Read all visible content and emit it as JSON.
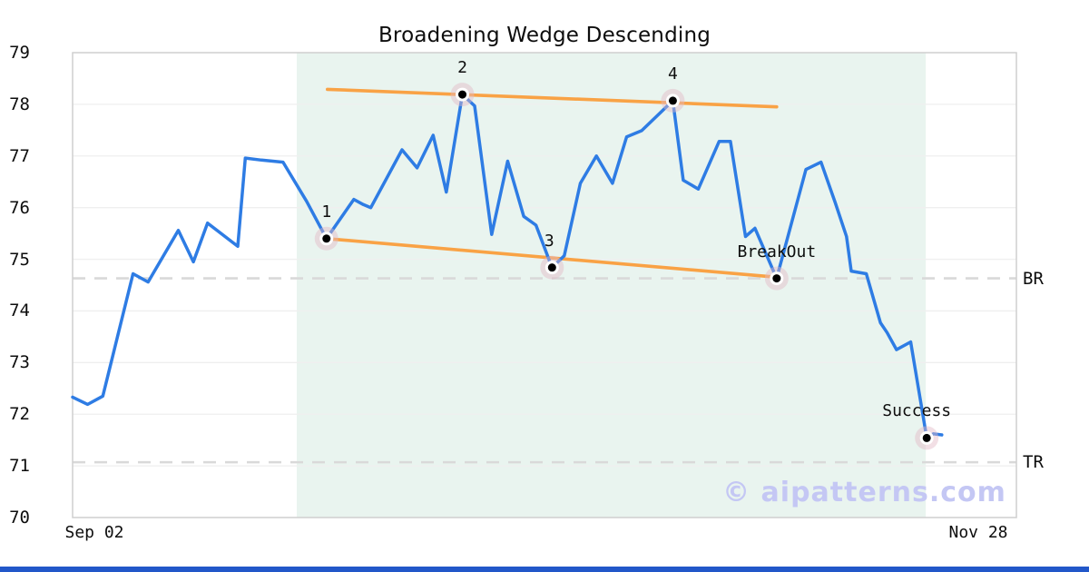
{
  "chart_data": {
    "type": "line",
    "title": "Broadening Wedge Descending",
    "watermark": "© aipatterns.com",
    "y_axis": {
      "min": 70,
      "max": 79,
      "ticks": [
        70,
        71,
        72,
        73,
        74,
        75,
        76,
        77,
        78,
        79
      ]
    },
    "x_axis": {
      "tick_labels": [
        "Sep 02",
        "Nov 28"
      ]
    },
    "series": {
      "name": "price",
      "points": [
        [
          0.0,
          72.33
        ],
        [
          0.016,
          72.19
        ],
        [
          0.032,
          72.35
        ],
        [
          0.064,
          74.72
        ],
        [
          0.08,
          74.56
        ],
        [
          0.112,
          75.56
        ],
        [
          0.128,
          74.95
        ],
        [
          0.143,
          75.7
        ],
        [
          0.175,
          75.25
        ],
        [
          0.183,
          76.96
        ],
        [
          0.2,
          76.92
        ],
        [
          0.223,
          76.88
        ],
        [
          0.248,
          76.12
        ],
        [
          0.269,
          75.4
        ],
        [
          0.298,
          76.16
        ],
        [
          0.308,
          76.06
        ],
        [
          0.316,
          76.0
        ],
        [
          0.349,
          77.12
        ],
        [
          0.365,
          76.77
        ],
        [
          0.382,
          77.4
        ],
        [
          0.396,
          76.3
        ],
        [
          0.413,
          78.19
        ],
        [
          0.426,
          77.97
        ],
        [
          0.444,
          75.48
        ],
        [
          0.461,
          76.9
        ],
        [
          0.478,
          75.83
        ],
        [
          0.491,
          75.66
        ],
        [
          0.508,
          74.84
        ],
        [
          0.521,
          75.07
        ],
        [
          0.538,
          76.47
        ],
        [
          0.555,
          77.0
        ],
        [
          0.572,
          76.47
        ],
        [
          0.587,
          77.37
        ],
        [
          0.603,
          77.49
        ],
        [
          0.636,
          78.07
        ],
        [
          0.647,
          76.53
        ],
        [
          0.663,
          76.36
        ],
        [
          0.685,
          77.28
        ],
        [
          0.697,
          77.28
        ],
        [
          0.713,
          75.44
        ],
        [
          0.723,
          75.6
        ],
        [
          0.746,
          74.63
        ],
        [
          0.777,
          76.74
        ],
        [
          0.793,
          76.88
        ],
        [
          0.808,
          76.1
        ],
        [
          0.82,
          75.44
        ],
        [
          0.825,
          74.77
        ],
        [
          0.841,
          74.72
        ],
        [
          0.856,
          73.77
        ],
        [
          0.863,
          73.58
        ],
        [
          0.873,
          73.25
        ],
        [
          0.888,
          73.4
        ],
        [
          0.905,
          71.54
        ],
        [
          0.912,
          71.62
        ],
        [
          0.921,
          71.6
        ]
      ]
    },
    "trendlines": [
      {
        "name": "upper-resistance",
        "from": [
          0.27,
          78.29
        ],
        "to": [
          0.746,
          77.95
        ]
      },
      {
        "name": "lower-support",
        "from": [
          0.269,
          75.4
        ],
        "to": [
          0.742,
          74.66
        ]
      }
    ],
    "pattern_region": {
      "t_start": 0.2375,
      "t_end": 0.904
    },
    "levels": [
      {
        "label": "BR",
        "value": 74.63
      },
      {
        "label": "TR",
        "value": 71.07
      }
    ],
    "markers": [
      {
        "label": "1",
        "t": 0.269,
        "value": 75.4
      },
      {
        "label": "2",
        "t": 0.413,
        "value": 78.19
      },
      {
        "label": "3",
        "t": 0.508,
        "value": 74.84,
        "label_dx": -3
      },
      {
        "label": "4",
        "t": 0.636,
        "value": 78.07
      },
      {
        "label": "BreakOut",
        "t": 0.746,
        "value": 74.63
      },
      {
        "label": "Success",
        "t": 0.905,
        "value": 71.54,
        "label_dx": -11
      }
    ],
    "colors": {
      "line": "#2e7ce4",
      "trendline": "#f9a245",
      "region": "#e9f4ef",
      "grid": "#efefef",
      "border": "#cfcfcf",
      "dashed_level": "#d9d9d9",
      "marker_halo": "#e2b7c6",
      "marker_ring": "#ffffff",
      "marker_dot": "#000000",
      "watermark": "#c4c7f4",
      "footer_bar": "#2257c9",
      "text": "#0d0d0d"
    },
    "layout_hints": {
      "grid": "horizontal-only",
      "legend": "none"
    }
  }
}
